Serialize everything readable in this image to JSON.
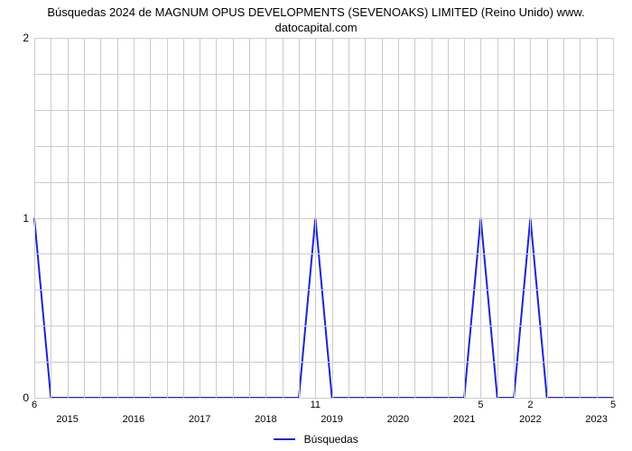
{
  "chart": {
    "type": "line",
    "title_line1": "Búsquedas 2024 de MAGNUM OPUS DEVELOPMENTS (SEVENOAKS) LIMITED (Reino Unido) www.",
    "title_line2": "datocapital.com",
    "title_fontsize": 13,
    "background_color": "#ffffff",
    "grid_color": "#cccccc",
    "axis_color": "#999999",
    "series": {
      "label": "Búsquedas",
      "color": "#1926d2",
      "line_width": 2,
      "x": [
        0,
        1,
        2,
        3,
        4,
        5,
        6,
        7,
        8,
        9,
        10,
        11,
        12,
        13,
        14,
        15,
        16,
        17,
        18,
        19,
        20,
        21,
        22,
        23,
        24,
        25,
        26,
        27,
        28,
        29,
        30,
        31,
        32,
        33,
        34,
        35
      ],
      "y": [
        1,
        0,
        0,
        0,
        0,
        0,
        0,
        0,
        0,
        0,
        0,
        0,
        0,
        0,
        0,
        0,
        0,
        1,
        0,
        0,
        0,
        0,
        0,
        0,
        0,
        0,
        0,
        1,
        0,
        0,
        1,
        0,
        0,
        0,
        0,
        0
      ]
    },
    "x_range": [
      0,
      35
    ],
    "ylim": [
      0,
      2
    ],
    "yticks": [
      0,
      1,
      2
    ],
    "n_minor_h": 10,
    "xticks_major": [
      {
        "i": 2,
        "label": "2015"
      },
      {
        "i": 6,
        "label": "2016"
      },
      {
        "i": 10,
        "label": "2017"
      },
      {
        "i": 14,
        "label": "2018"
      },
      {
        "i": 18,
        "label": "2019"
      },
      {
        "i": 22,
        "label": "2020"
      },
      {
        "i": 26,
        "label": "2021"
      },
      {
        "i": 30,
        "label": "2022"
      },
      {
        "i": 34,
        "label": "2023"
      }
    ],
    "data_labels": [
      {
        "i": 0,
        "text": "6"
      },
      {
        "i": 17,
        "text": "11"
      },
      {
        "i": 27,
        "text": "5"
      },
      {
        "i": 30,
        "text": "2"
      },
      {
        "i": 35,
        "text": "5"
      }
    ],
    "legend_position": "bottom-center",
    "tick_fontsize": 12
  }
}
